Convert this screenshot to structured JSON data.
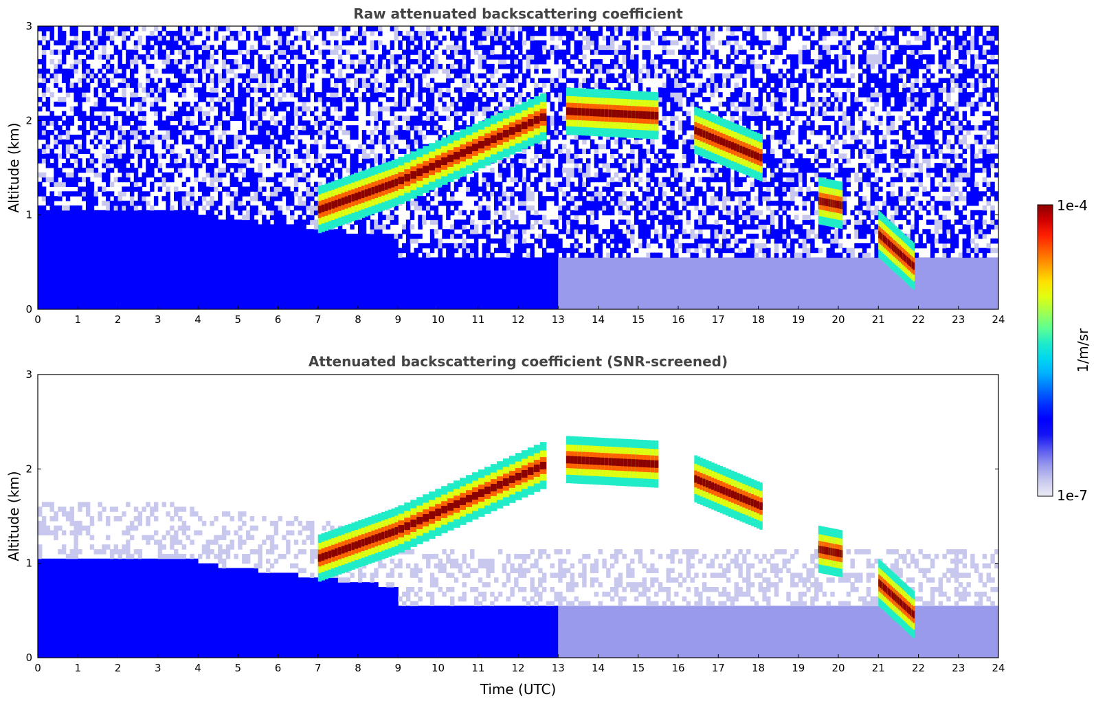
{
  "chart_data": [
    {
      "type": "heatmap",
      "title": "Raw attenuated backscattering coefficient",
      "xlabel": "",
      "ylabel": "Altitude (km)",
      "xlim": [
        0,
        24
      ],
      "ylim": [
        0,
        3
      ],
      "xticks": [
        "0",
        "1",
        "2",
        "3",
        "4",
        "5",
        "6",
        "7",
        "8",
        "9",
        "10",
        "11",
        "12",
        "13",
        "14",
        "15",
        "16",
        "17",
        "18",
        "19",
        "20",
        "21",
        "22",
        "23",
        "24"
      ],
      "yticks": [
        "0",
        "1",
        "2",
        "3"
      ],
      "screened": false,
      "cloud_layers": [
        {
          "t0": 7.0,
          "t1": 9.0,
          "alt0": 1.05,
          "alt1": 1.35
        },
        {
          "t0": 9.0,
          "t1": 12.7,
          "alt0": 1.35,
          "alt1": 2.05
        },
        {
          "t0": 13.2,
          "t1": 15.5,
          "alt0": 2.1,
          "alt1": 2.05
        },
        {
          "t0": 16.4,
          "t1": 18.1,
          "alt0": 1.9,
          "alt1": 1.6
        },
        {
          "t0": 19.5,
          "t1": 20.1,
          "alt0": 1.15,
          "alt1": 1.1
        },
        {
          "t0": 21.0,
          "t1": 21.9,
          "alt0": 0.8,
          "alt1": 0.45
        }
      ]
    },
    {
      "type": "heatmap",
      "title": "Attenuated backscattering coefficient (SNR-screened)",
      "xlabel": "Time (UTC)",
      "ylabel": "Altitude (km)",
      "xlim": [
        0,
        24
      ],
      "ylim": [
        0,
        3
      ],
      "xticks": [
        "0",
        "1",
        "2",
        "3",
        "4",
        "5",
        "6",
        "7",
        "8",
        "9",
        "10",
        "11",
        "12",
        "13",
        "14",
        "15",
        "16",
        "17",
        "18",
        "19",
        "20",
        "21",
        "22",
        "23",
        "24"
      ],
      "yticks": [
        "0",
        "1",
        "2",
        "3"
      ],
      "screened": true,
      "cloud_layers": [
        {
          "t0": 7.0,
          "t1": 9.0,
          "alt0": 1.05,
          "alt1": 1.35
        },
        {
          "t0": 9.0,
          "t1": 12.7,
          "alt0": 1.35,
          "alt1": 2.05
        },
        {
          "t0": 13.2,
          "t1": 15.5,
          "alt0": 2.1,
          "alt1": 2.05
        },
        {
          "t0": 16.4,
          "t1": 18.1,
          "alt0": 1.9,
          "alt1": 1.6
        },
        {
          "t0": 19.5,
          "t1": 20.1,
          "alt0": 1.15,
          "alt1": 1.1
        },
        {
          "t0": 21.0,
          "t1": 21.9,
          "alt0": 0.8,
          "alt1": 0.45
        }
      ]
    }
  ],
  "colorbar": {
    "label": "1/m/sr",
    "max_label": "1e-4",
    "min_label": "1e-7",
    "scale": "log",
    "colors": [
      "#ececf6",
      "#c8c8ee",
      "#9a9aec",
      "#5a5af0",
      "#1414f4",
      "#0000ff",
      "#0030ff",
      "#0070ff",
      "#00b0ff",
      "#00d8ee",
      "#20ecc8",
      "#60ff90",
      "#a0ff50",
      "#e0ff10",
      "#ffe000",
      "#ffa000",
      "#ff6000",
      "#ff2000",
      "#d00000",
      "#8b0000"
    ]
  }
}
